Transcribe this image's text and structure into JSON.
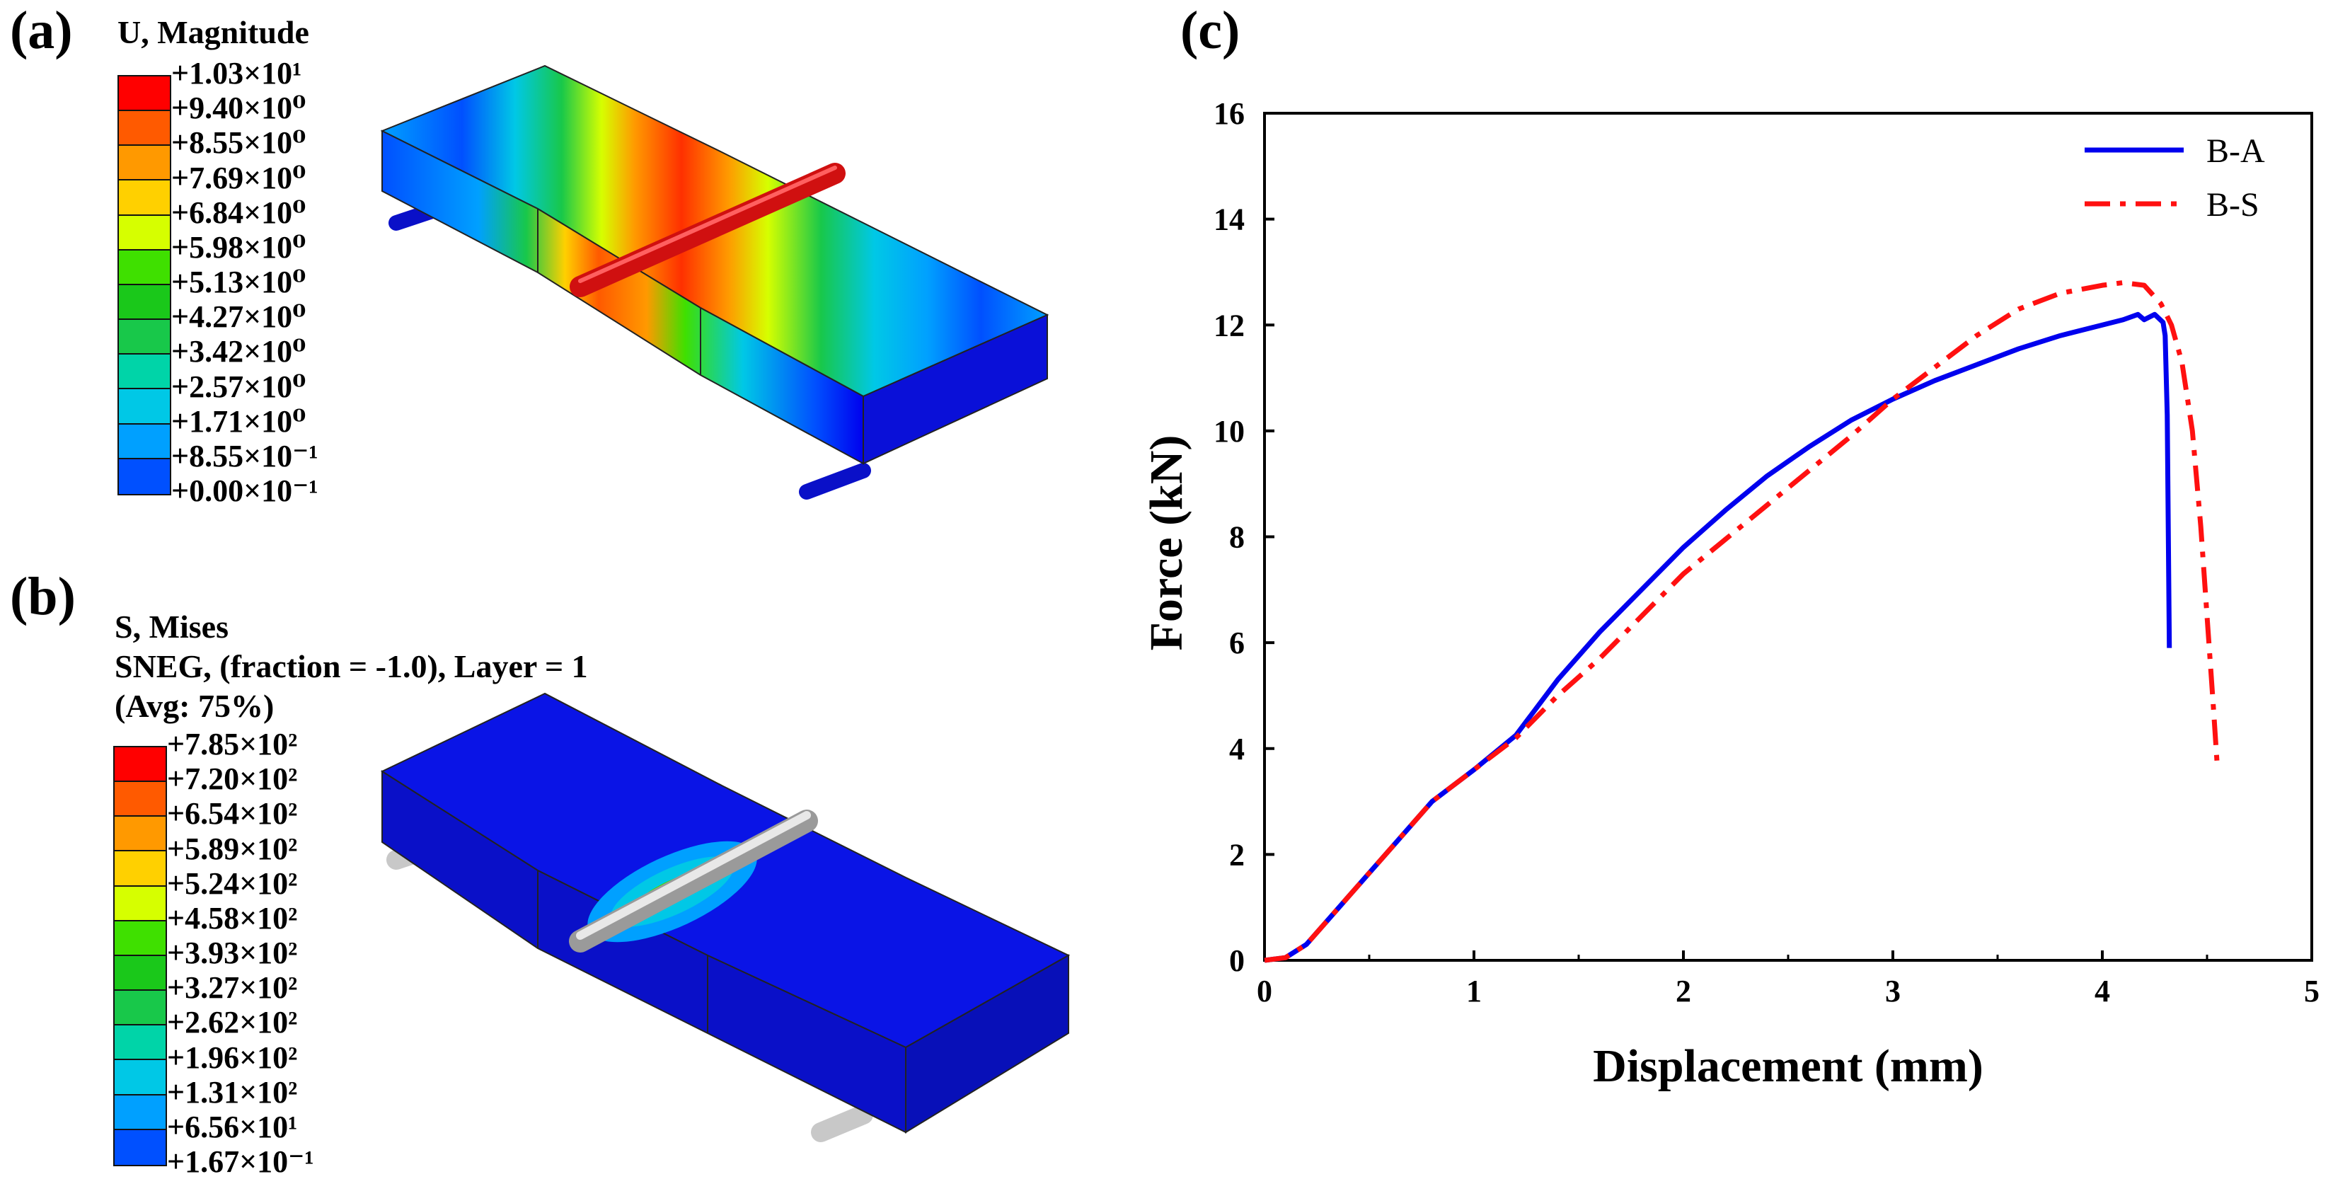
{
  "panel_a": {
    "label": "(a)",
    "legend_title": "U, Magnitude",
    "legend_values": [
      "+1.03×10¹",
      "+9.40×10⁰",
      "+8.55×10⁰",
      "+7.69×10⁰",
      "+6.84×10⁰",
      "+5.98×10⁰",
      "+5.13×10⁰",
      "+4.27×10⁰",
      "+3.42×10⁰",
      "+2.57×10⁰",
      "+1.71×10⁰",
      "+8.55×10⁻¹",
      "+0.00×10⁻¹"
    ],
    "legend_colors": [
      "#ff0000",
      "#ff5a00",
      "#ff9900",
      "#ffd000",
      "#d6ff00",
      "#3fe000",
      "#1ac81a",
      "#18c84a",
      "#00d4a8",
      "#00c8e6",
      "#00a0ff",
      "#0050ff",
      "#0000ee"
    ]
  },
  "panel_b": {
    "label": "(b)",
    "legend_title_lines": [
      "S, Mises",
      "SNEG, (fraction = -1.0), Layer = 1",
      "(Avg: 75%)"
    ],
    "legend_values": [
      "+7.85×10²",
      "+7.20×10²",
      "+6.54×10²",
      "+5.89×10²",
      "+5.24×10²",
      "+4.58×10²",
      "+3.93×10²",
      "+3.27×10²",
      "+2.62×10²",
      "+1.96×10²",
      "+1.31×10²",
      "+6.56×10¹",
      "+1.67×10⁻¹"
    ],
    "legend_colors": [
      "#ff0000",
      "#ff5a00",
      "#ff9900",
      "#ffd000",
      "#d6ff00",
      "#3fe000",
      "#1ac81a",
      "#18c84a",
      "#00d4a8",
      "#00c8e6",
      "#00a0ff",
      "#0050ff",
      "#0000ee"
    ]
  },
  "panel_c": {
    "label": "(c)"
  },
  "chart_data": {
    "type": "line",
    "xlabel": "Displacement (mm)",
    "ylabel": "Force (kN)",
    "xlim": [
      0,
      5
    ],
    "ylim": [
      0,
      16
    ],
    "xticks": [
      0,
      1,
      2,
      3,
      4,
      5
    ],
    "yticks": [
      0,
      2,
      4,
      6,
      8,
      10,
      12,
      14,
      16
    ],
    "legend_position": "top-right",
    "series": [
      {
        "name": "B-A",
        "color": "#0000ee",
        "style": "solid",
        "x": [
          0,
          0.1,
          0.2,
          0.4,
          0.6,
          0.8,
          1.0,
          1.2,
          1.4,
          1.6,
          1.8,
          2.0,
          2.2,
          2.4,
          2.6,
          2.8,
          3.0,
          3.2,
          3.4,
          3.6,
          3.8,
          4.0,
          4.1,
          4.17,
          4.2,
          4.25,
          4.29,
          4.3,
          4.31,
          4.32
        ],
        "y": [
          0,
          0.05,
          0.3,
          1.2,
          2.1,
          3.0,
          3.6,
          4.25,
          5.3,
          6.2,
          7.0,
          7.8,
          8.5,
          9.15,
          9.7,
          10.2,
          10.6,
          10.95,
          11.25,
          11.55,
          11.8,
          12.0,
          12.1,
          12.2,
          12.1,
          12.2,
          12.05,
          11.8,
          10.3,
          5.9
        ]
      },
      {
        "name": "B-S",
        "color": "#ff1010",
        "style": "dash-dot",
        "x": [
          0,
          0.1,
          0.2,
          0.4,
          0.6,
          0.8,
          1.0,
          1.2,
          1.4,
          1.6,
          1.8,
          2.0,
          2.2,
          2.4,
          2.6,
          2.8,
          3.0,
          3.2,
          3.4,
          3.6,
          3.8,
          4.0,
          4.1,
          4.2,
          4.28,
          4.33,
          4.38,
          4.43,
          4.47,
          4.5,
          4.53,
          4.55
        ],
        "y": [
          0,
          0.05,
          0.3,
          1.2,
          2.1,
          3.0,
          3.6,
          4.2,
          5.0,
          5.7,
          6.5,
          7.3,
          7.95,
          8.6,
          9.25,
          9.9,
          10.6,
          11.2,
          11.8,
          12.3,
          12.6,
          12.75,
          12.8,
          12.75,
          12.4,
          12.0,
          11.3,
          10.0,
          8.2,
          6.5,
          4.8,
          3.6
        ]
      }
    ]
  }
}
